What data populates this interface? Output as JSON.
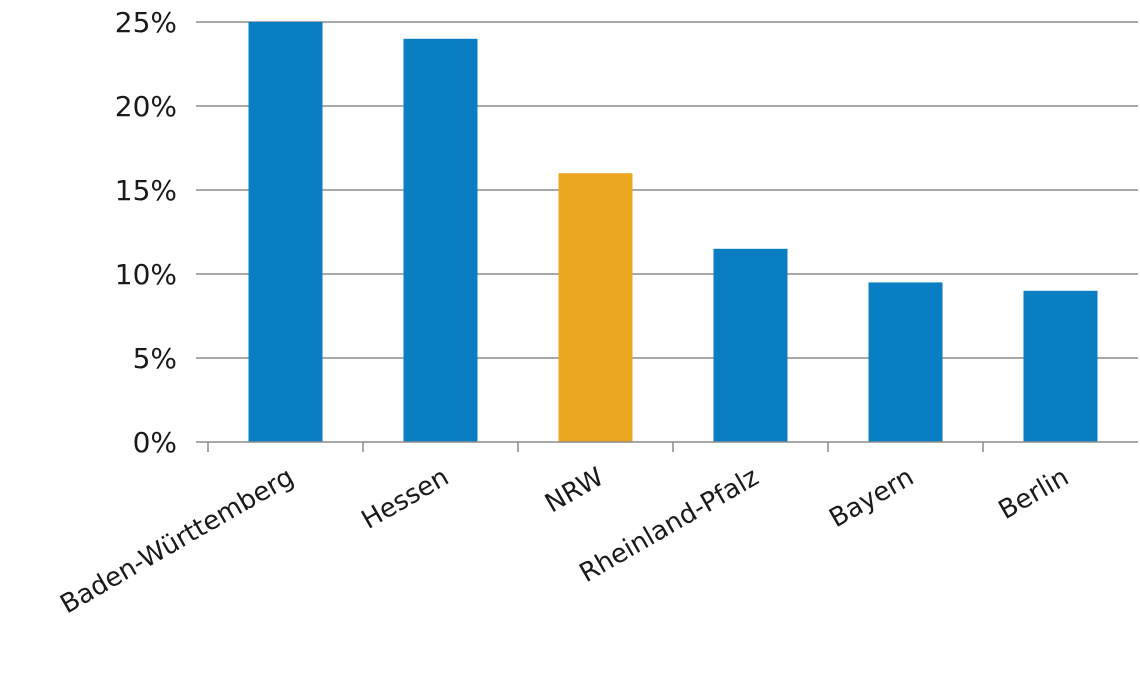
{
  "chart_data": {
    "type": "bar",
    "categories": [
      "Baden-Württemberg",
      "Hessen",
      "NRW",
      "Rheinland-Pfalz",
      "Bayern",
      "Berlin"
    ],
    "values": [
      25,
      24,
      16,
      11.5,
      9.5,
      9
    ],
    "highlight_category": "NRW",
    "unit": "%",
    "ylim": [
      0,
      25
    ],
    "yticks": [
      0,
      5,
      10,
      15,
      20,
      25
    ],
    "ytick_labels": [
      "0%",
      "5%",
      "10%",
      "15%",
      "20%",
      "25%"
    ],
    "title": "",
    "xlabel": "",
    "ylabel": "",
    "grid": true,
    "legend": "none",
    "colors": {
      "bar": "#0A7EC2",
      "highlight": "#ECA720",
      "grid": "#8c8c8c",
      "axis": "#8c8c8c"
    }
  }
}
